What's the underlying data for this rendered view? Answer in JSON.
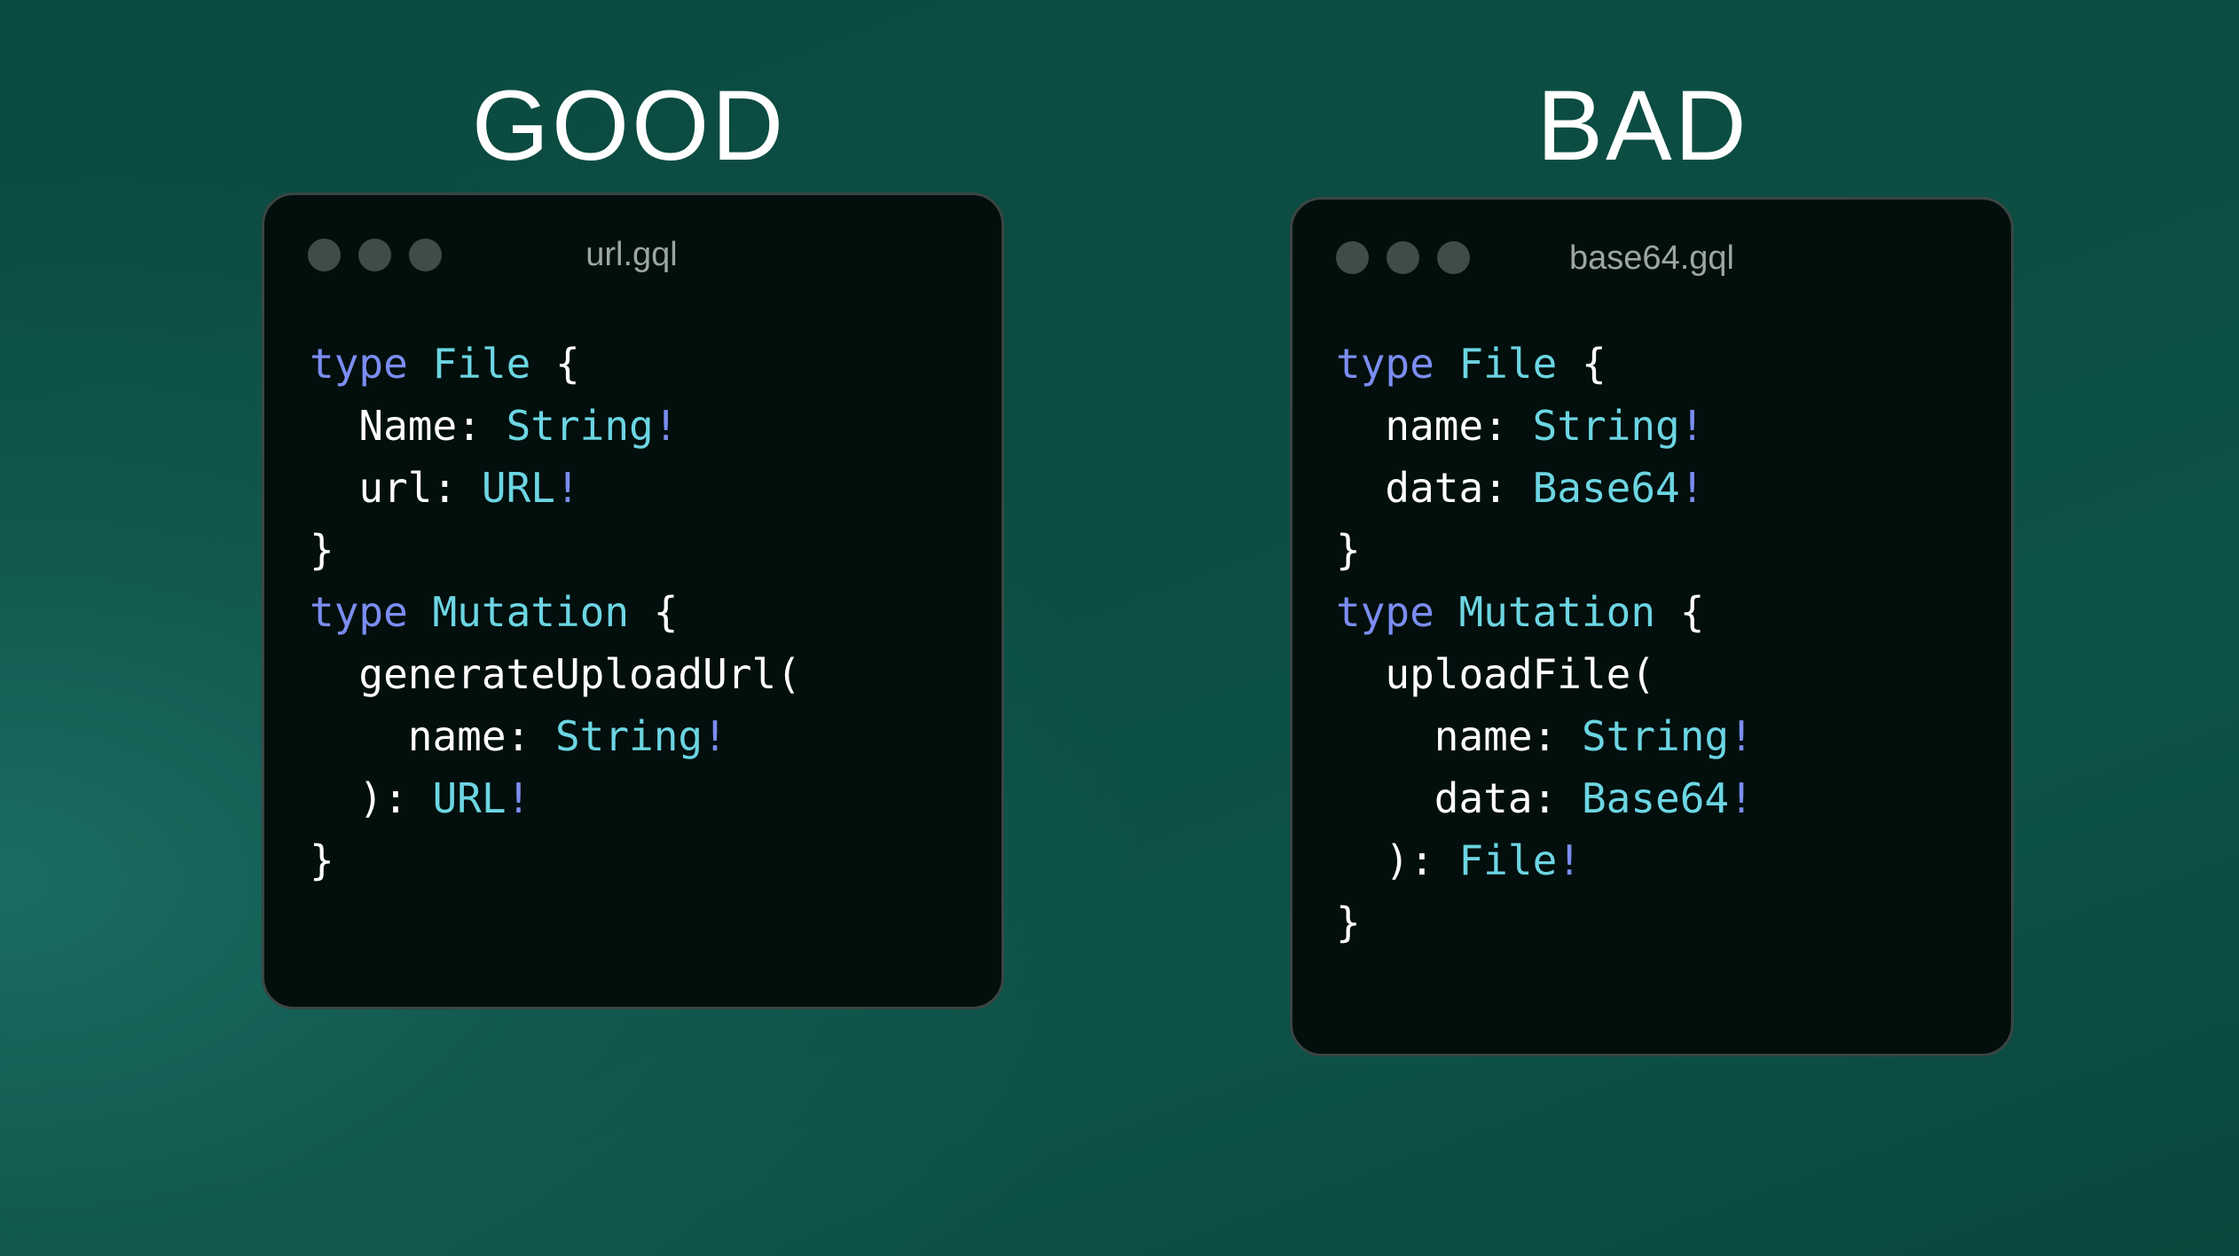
{
  "panels": [
    {
      "heading": "GOOD",
      "filename": "url.gql",
      "code": [
        [
          {
            "c": "k",
            "t": "type "
          },
          {
            "c": "t",
            "t": "File"
          },
          {
            "c": "p",
            "t": " {"
          }
        ],
        [
          {
            "c": "p",
            "t": "  Name: "
          },
          {
            "c": "t",
            "t": "String"
          },
          {
            "c": "b",
            "t": "!"
          }
        ],
        [
          {
            "c": "p",
            "t": "  url: "
          },
          {
            "c": "t",
            "t": "URL"
          },
          {
            "c": "b",
            "t": "!"
          }
        ],
        [
          {
            "c": "p",
            "t": "}"
          }
        ],
        [
          {
            "c": "k",
            "t": "type "
          },
          {
            "c": "t",
            "t": "Mutation"
          },
          {
            "c": "p",
            "t": " {"
          }
        ],
        [
          {
            "c": "p",
            "t": "  generateUploadUrl("
          }
        ],
        [
          {
            "c": "p",
            "t": "    name: "
          },
          {
            "c": "t",
            "t": "String"
          },
          {
            "c": "b",
            "t": "!"
          }
        ],
        [
          {
            "c": "p",
            "t": "  ): "
          },
          {
            "c": "t",
            "t": "URL"
          },
          {
            "c": "b",
            "t": "!"
          }
        ],
        [
          {
            "c": "p",
            "t": "}"
          }
        ]
      ]
    },
    {
      "heading": "BAD",
      "filename": "base64.gql",
      "code": [
        [
          {
            "c": "k",
            "t": "type "
          },
          {
            "c": "t",
            "t": "File"
          },
          {
            "c": "p",
            "t": " {"
          }
        ],
        [
          {
            "c": "p",
            "t": "  name: "
          },
          {
            "c": "t",
            "t": "String"
          },
          {
            "c": "b",
            "t": "!"
          }
        ],
        [
          {
            "c": "p",
            "t": "  data: "
          },
          {
            "c": "t",
            "t": "Base64"
          },
          {
            "c": "b",
            "t": "!"
          }
        ],
        [
          {
            "c": "p",
            "t": "}"
          }
        ],
        [
          {
            "c": "k",
            "t": "type "
          },
          {
            "c": "t",
            "t": "Mutation"
          },
          {
            "c": "p",
            "t": " {"
          }
        ],
        [
          {
            "c": "p",
            "t": "  uploadFile("
          }
        ],
        [
          {
            "c": "p",
            "t": "    name: "
          },
          {
            "c": "t",
            "t": "String"
          },
          {
            "c": "b",
            "t": "!"
          }
        ],
        [
          {
            "c": "p",
            "t": "    data: "
          },
          {
            "c": "t",
            "t": "Base64"
          },
          {
            "c": "b",
            "t": "!"
          }
        ],
        [
          {
            "c": "p",
            "t": "  ): "
          },
          {
            "c": "t",
            "t": "File"
          },
          {
            "c": "b",
            "t": "!"
          }
        ],
        [
          {
            "c": "p",
            "t": "}"
          }
        ]
      ]
    }
  ],
  "colors": {
    "keyword": "#7b8df0",
    "type": "#6cd5e2",
    "text": "#ffffff",
    "window_bg": "#020f0d"
  }
}
